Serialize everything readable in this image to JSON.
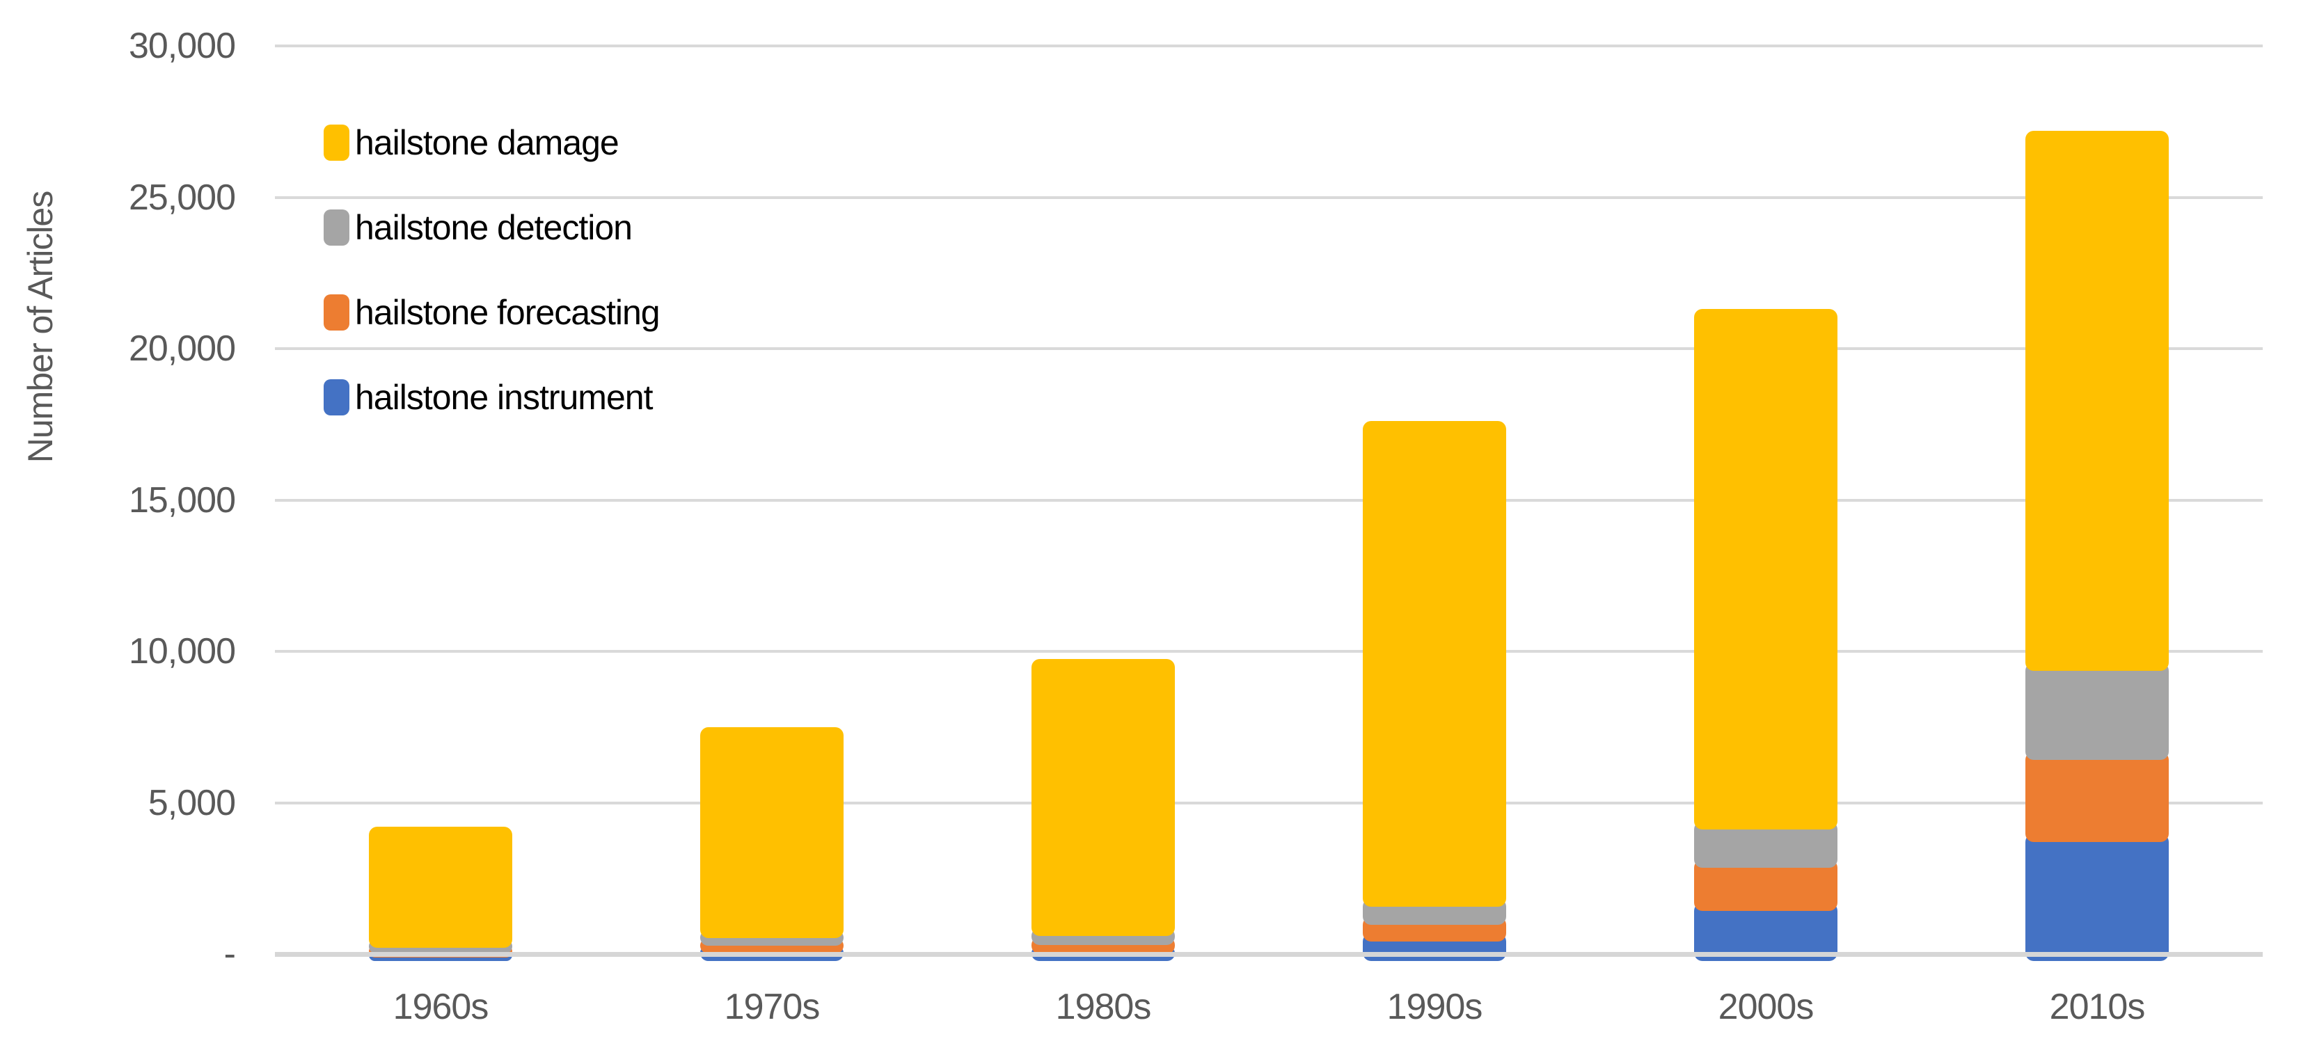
{
  "chart_data": {
    "type": "bar",
    "stacked": true,
    "title": "",
    "xlabel": "",
    "ylabel": "Number of Articles",
    "categories": [
      "1960s",
      "1970s",
      "1980s",
      "1990s",
      "2000s",
      "2010s"
    ],
    "series": [
      {
        "name": "hailstone damage",
        "color": "#FFC000",
        "values": [
          3720,
          6700,
          8870,
          15770,
          16900,
          17570
        ]
      },
      {
        "name": "hailstone detection",
        "color": "#A5A5A5",
        "values": [
          180,
          260,
          310,
          600,
          1280,
          2950
        ]
      },
      {
        "name": "hailstone forecasting",
        "color": "#ED7D31",
        "values": [
          150,
          250,
          290,
          550,
          1420,
          2710
        ]
      },
      {
        "name": "hailstone instrument",
        "color": "#4472C4",
        "values": [
          150,
          290,
          280,
          680,
          1700,
          3970
        ]
      }
    ],
    "stack_order_bottom_to_top": [
      "hailstone instrument",
      "hailstone forecasting",
      "hailstone detection",
      "hailstone damage"
    ],
    "totals": [
      4200,
      7500,
      9750,
      17600,
      21300,
      27200
    ],
    "ylim": [
      0,
      30000
    ],
    "ytick_step": 5000,
    "ytick_labels": [
      "-",
      "5,000",
      "10,000",
      "15,000",
      "20,000",
      "25,000",
      "30,000"
    ],
    "grid": true,
    "legend_position": "top-left",
    "style": {
      "axis_text_color": "#595959",
      "legend_text_color": "#000000",
      "gridline_color": "#D9D9D9",
      "axis_line_color": "#D6D6D6",
      "background": "#FFFFFF"
    }
  }
}
